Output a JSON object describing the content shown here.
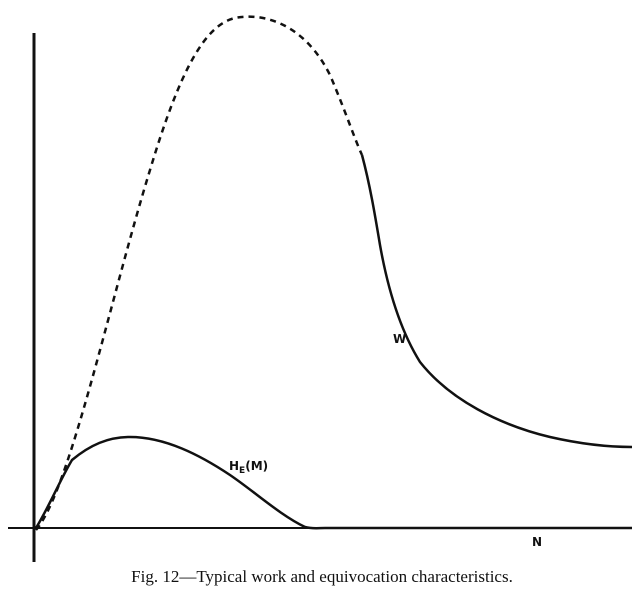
{
  "chart_data": {
    "type": "line",
    "title": "",
    "xlabel": "N",
    "ylabel": "",
    "series": [
      {
        "name": "W",
        "style": "dashed-then-solid",
        "x": [
          0,
          0.05,
          0.1,
          0.15,
          0.2,
          0.25,
          0.3,
          0.35,
          0.4,
          0.45,
          0.5,
          0.55,
          0.6,
          0.65,
          0.7,
          0.75,
          0.8,
          0.85,
          0.9,
          0.95,
          1.0
        ],
        "values": [
          0.0,
          0.18,
          0.45,
          0.72,
          0.9,
          0.99,
          0.98,
          0.9,
          0.75,
          0.55,
          0.4,
          0.32,
          0.27,
          0.23,
          0.2,
          0.18,
          0.17,
          0.16,
          0.155,
          0.15,
          0.148
        ]
      },
      {
        "name": "H_E(M)",
        "style": "solid",
        "x": [
          0,
          0.03,
          0.06,
          0.1,
          0.14,
          0.18,
          0.22,
          0.27,
          0.32,
          0.36,
          0.4,
          0.44,
          0.48,
          0.52,
          0.56,
          0.6,
          0.7,
          0.8,
          0.9,
          1.0
        ],
        "values": [
          0.0,
          0.07,
          0.12,
          0.15,
          0.17,
          0.175,
          0.17,
          0.15,
          0.12,
          0.09,
          0.06,
          0.03,
          0.01,
          0.0,
          0.0,
          0.0,
          0.0,
          0.0,
          0.0,
          0.0
        ]
      }
    ],
    "labels": {
      "w": "W",
      "he_main": "H",
      "he_sub": "E",
      "he_arg": "(M)",
      "n": "N"
    },
    "dashed_until_x": 0.5
  },
  "caption": "Fig. 12—Typical work and equivocation characteristics.",
  "colors": {
    "ink": "#111111",
    "background": "#ffffff"
  }
}
